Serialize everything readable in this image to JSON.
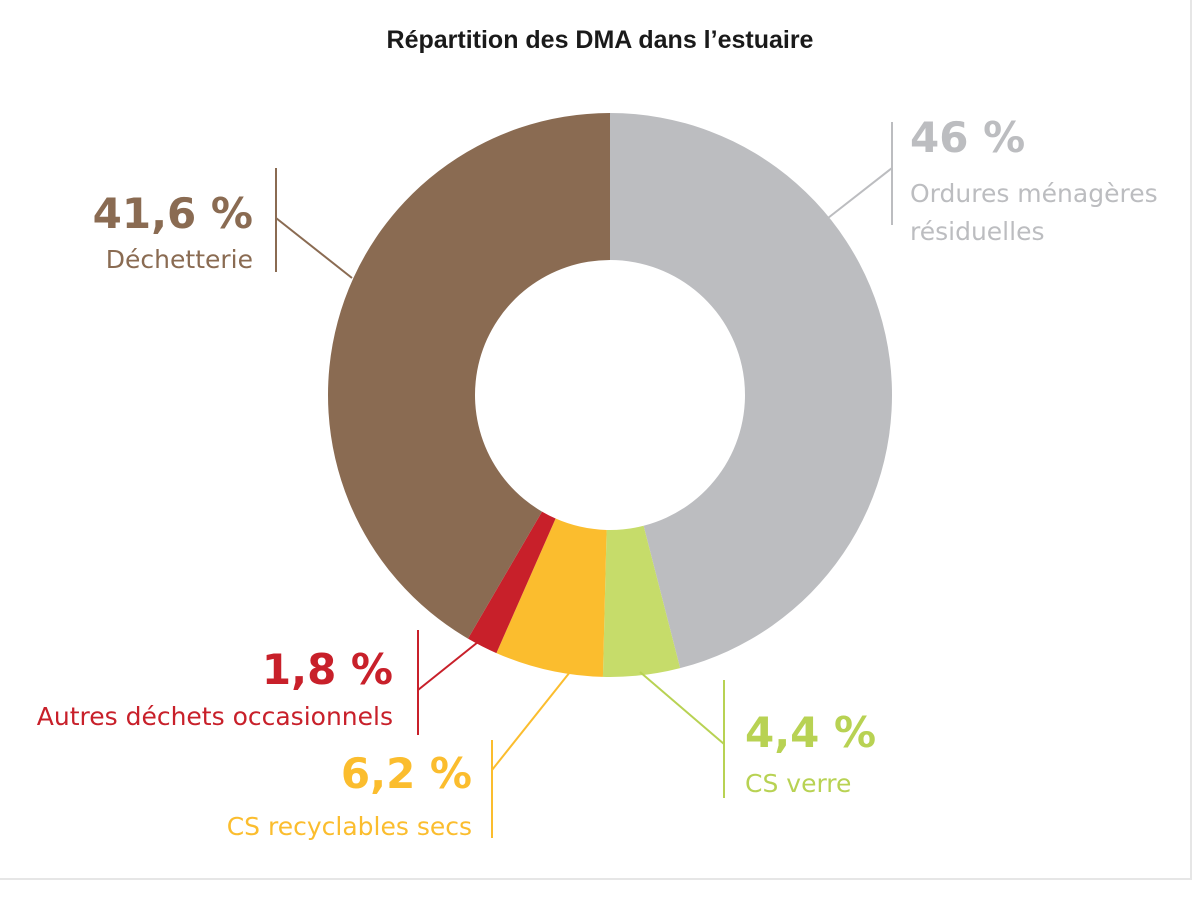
{
  "chart_data": {
    "type": "pie",
    "variant": "donut",
    "title": "Répartition des DMA dans l’estuaire",
    "slices": [
      {
        "label": "Ordures ménagères\nrésiduelles",
        "pct_text": "46 %",
        "value": 46,
        "color": "#bcbdc0"
      },
      {
        "label": "CS verre",
        "pct_text": "4,4 %",
        "value": 4.4,
        "color": "#c6dc6a"
      },
      {
        "label": "CS recyclables secs",
        "pct_text": "6,2 %",
        "value": 6.2,
        "color": "#fbbd2e"
      },
      {
        "label": "Autres déchets occasionnels",
        "pct_text": "1,8 %",
        "value": 1.8,
        "color": "#c8202a"
      },
      {
        "label": "Déchetterie",
        "pct_text": "41,6 %",
        "value": 41.6,
        "color": "#8a6b52"
      }
    ],
    "label_colors": [
      "#bcbdc0",
      "#b8d253",
      "#fbbd2e",
      "#c8202a",
      "#8a6b52"
    ],
    "start_angle": "top",
    "direction": "clockwise"
  }
}
